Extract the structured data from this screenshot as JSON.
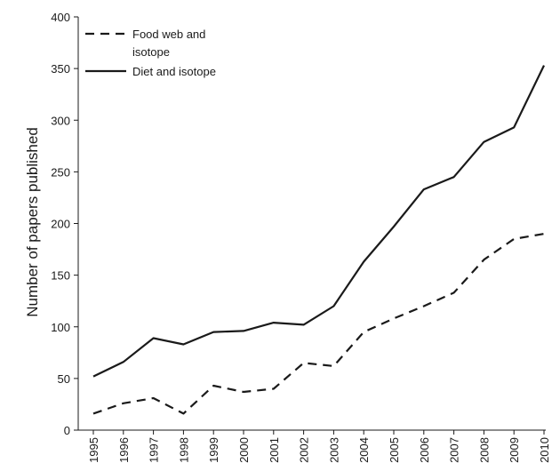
{
  "chart_data": {
    "type": "line",
    "title": "",
    "xlabel": "",
    "ylabel": "Number of papers published",
    "x": [
      "1995",
      "1996",
      "1997",
      "1998",
      "1999",
      "2000",
      "2001",
      "2002",
      "2003",
      "2004",
      "2005",
      "2006",
      "2007",
      "2008",
      "2009",
      "2010"
    ],
    "ylim": [
      0,
      400
    ],
    "yticks": [
      0,
      50,
      100,
      150,
      200,
      250,
      300,
      350,
      400
    ],
    "grid": false,
    "legend_position": "top-left",
    "series": [
      {
        "name": "Food web and isotope",
        "legend_lines": [
          "Food web and",
          "isotope"
        ],
        "style": "dashed",
        "color": "#1a1a1a",
        "values": [
          16,
          26,
          31,
          16,
          43,
          37,
          40,
          65,
          62,
          95,
          108,
          120,
          133,
          165,
          185,
          190
        ]
      },
      {
        "name": "Diet and isotope",
        "legend_lines": [
          "Diet and isotope"
        ],
        "style": "solid",
        "color": "#1a1a1a",
        "values": [
          52,
          66,
          89,
          83,
          95,
          96,
          104,
          102,
          120,
          163,
          197,
          233,
          245,
          279,
          293,
          353
        ]
      }
    ]
  }
}
